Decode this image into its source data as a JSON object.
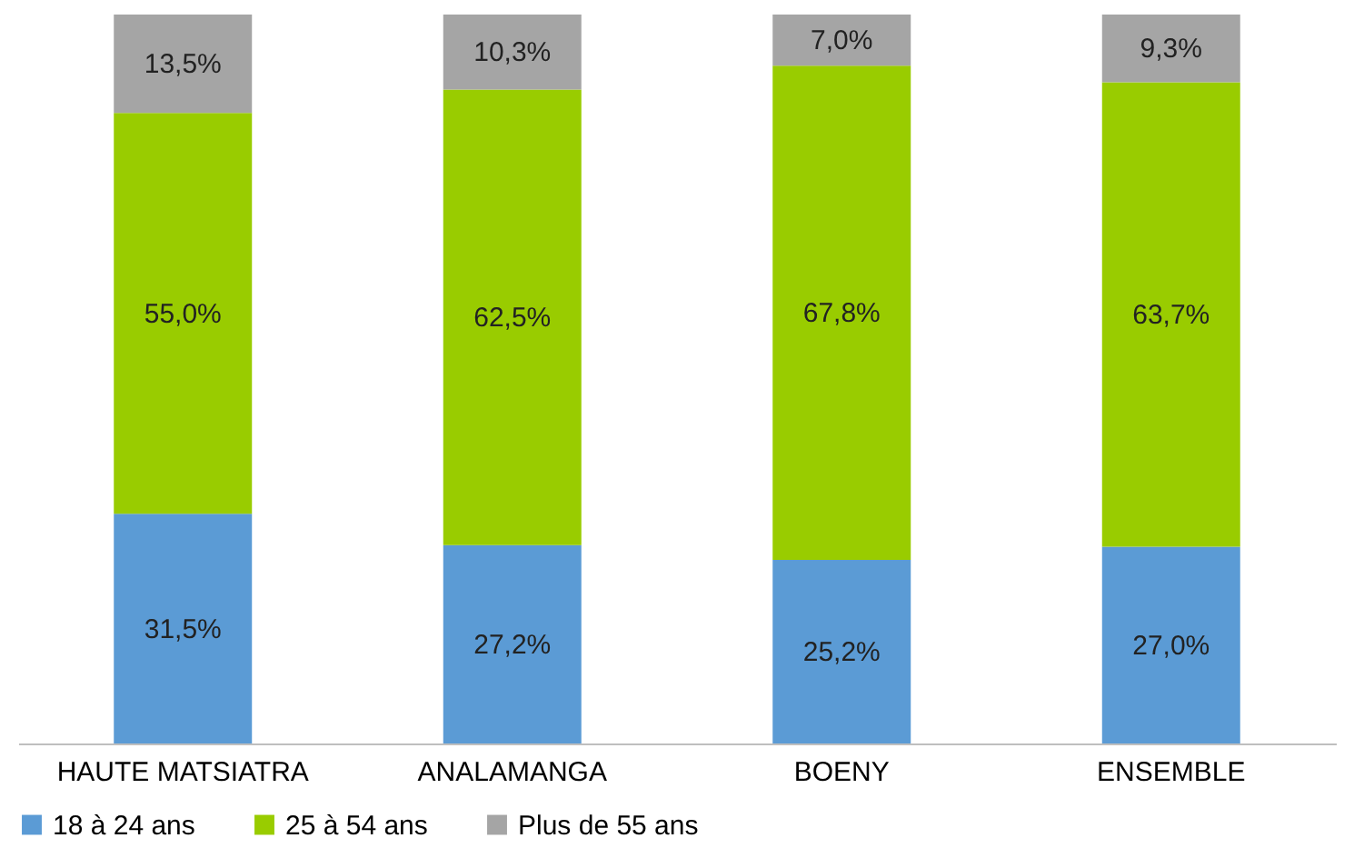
{
  "chart_data": {
    "type": "bar",
    "stacked": true,
    "categories": [
      "HAUTE MATSIATRA",
      "ANALAMANGA",
      "BOENY",
      "ENSEMBLE"
    ],
    "ylim": [
      0,
      100
    ],
    "tick_labels": "x",
    "legend": "bottom",
    "series": [
      {
        "name": "18 à 24 ans",
        "color": "#5b9bd5",
        "values": [
          31.5,
          27.2,
          25.2,
          27.0
        ],
        "value_labels": [
          "31,5%",
          "27,2%",
          "25,2%",
          "27,0%"
        ]
      },
      {
        "name": "25 à 54 ans",
        "color": "#99cc00",
        "values": [
          55.0,
          62.5,
          67.8,
          63.7
        ],
        "value_labels": [
          "55,0%",
          "62,5%",
          "67,8%",
          "63,7%"
        ]
      },
      {
        "name": "Plus de 55 ans",
        "color": "#a5a5a5",
        "values": [
          13.5,
          10.3,
          7.0,
          9.3
        ],
        "value_labels": [
          "13,5%",
          "10,3%",
          "7,0%",
          "9,3%"
        ]
      }
    ]
  }
}
